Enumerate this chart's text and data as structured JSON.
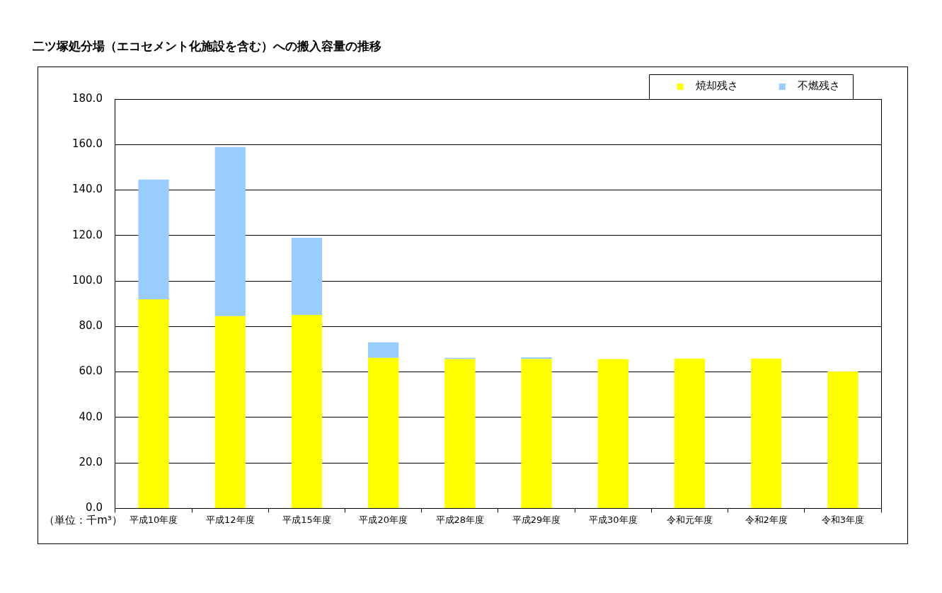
{
  "chart_data": {
    "type": "bar",
    "title": "二ツ塚処分場（エコセメント化施設を含む）への搬入容量の推移",
    "stacked": true,
    "categories": [
      "平成10年度",
      "平成12年度",
      "平成15年度",
      "平成20年度",
      "平成28年度",
      "平成29年度",
      "平成30年度",
      "令和元年度",
      "令和2年度",
      "令和3年度"
    ],
    "series": [
      {
        "name": "焼却残さ",
        "color": "#ffff00",
        "values": [
          91.9,
          84.5,
          85.1,
          66.2,
          65.6,
          65.7,
          65.6,
          65.9,
          65.9,
          60.2
        ]
      },
      {
        "name": "不燃残さ",
        "color": "#99ccff",
        "values": [
          52.7,
          74.4,
          33.9,
          6.8,
          0.6,
          0.7,
          0,
          0,
          0,
          0
        ]
      }
    ],
    "ylim": [
      0,
      180
    ],
    "yticks": [
      {
        "value": 0,
        "label": "0.0"
      },
      {
        "value": 20,
        "label": "20.0"
      },
      {
        "value": 40,
        "label": "40.0"
      },
      {
        "value": 60,
        "label": "60.0"
      },
      {
        "value": 80,
        "label": "80.0"
      },
      {
        "value": 100,
        "label": "100.0"
      },
      {
        "value": 120,
        "label": "120.0"
      },
      {
        "value": 140,
        "label": "140.0"
      },
      {
        "value": 160,
        "label": "160.0"
      },
      {
        "value": 180,
        "label": "180.0"
      }
    ],
    "grid": "y",
    "legend": "top right",
    "annotations": [
      "（単位：千m³）"
    ]
  }
}
